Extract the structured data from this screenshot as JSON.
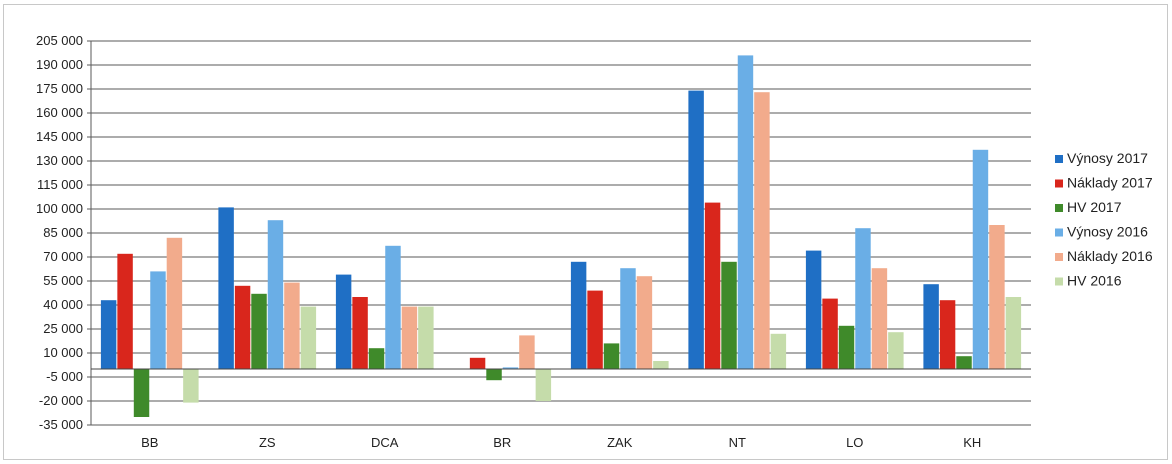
{
  "chart_data": {
    "type": "bar",
    "categories": [
      "BB",
      "ZS",
      "DCA",
      "BR",
      "ZAK",
      "NT",
      "LO",
      "KH"
    ],
    "series": [
      {
        "name": "Výnosy 2017",
        "color": "#1f6fc5",
        "values": [
          43000,
          101000,
          59000,
          0,
          67000,
          174000,
          74000,
          53000
        ]
      },
      {
        "name": "Náklady 2017",
        "color": "#d9261c",
        "values": [
          72000,
          52000,
          45000,
          7000,
          49000,
          104000,
          44000,
          43000
        ]
      },
      {
        "name": "HV 2017",
        "color": "#3f8a2a",
        "values": [
          -30000,
          47000,
          13000,
          -7000,
          16000,
          67000,
          27000,
          8000
        ]
      },
      {
        "name": "Výnosy 2016",
        "color": "#6aaee6",
        "values": [
          61000,
          93000,
          77000,
          1000,
          63000,
          196000,
          88000,
          137000
        ]
      },
      {
        "name": "Náklady 2016",
        "color": "#f2ab8c",
        "values": [
          82000,
          54000,
          39000,
          21000,
          58000,
          173000,
          63000,
          90000
        ]
      },
      {
        "name": "HV 2016",
        "color": "#c5dcaa",
        "values": [
          -21000,
          39000,
          39000,
          -20000,
          5000,
          22000,
          23000,
          45000
        ]
      }
    ],
    "ylim": [
      -35000,
      205000
    ],
    "yticks": [
      205000,
      190000,
      175000,
      160000,
      145000,
      130000,
      115000,
      100000,
      85000,
      70000,
      55000,
      40000,
      25000,
      10000,
      -5000,
      -20000,
      -35000
    ],
    "ytick_labels": [
      "205 000",
      "190 000",
      "175 000",
      "160 000",
      "145 000",
      "130 000",
      "115 000",
      "100 000",
      "85 000",
      "70 000",
      "55 000",
      "40 000",
      "25 000",
      "10 000",
      "-5 000",
      "-20 000",
      "-35 000"
    ],
    "grid": true,
    "legend_position": "right"
  }
}
